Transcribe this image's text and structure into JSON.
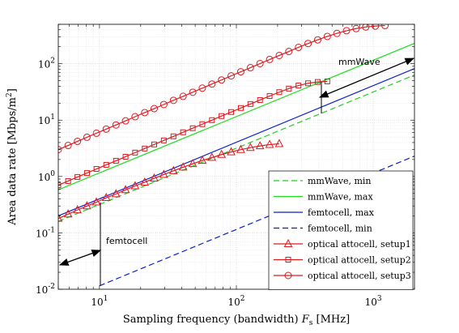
{
  "chart_data": {
    "type": "line",
    "xscale": "log",
    "yscale": "log",
    "xlim": [
      5,
      2000
    ],
    "ylim": [
      0.01,
      500
    ],
    "grid": true,
    "xlabel_main": "Sampling frequency (bandwidth) ",
    "xlabel_var": "F",
    "xlabel_sub": "s",
    "xlabel_unit": " [MHz]",
    "ylabel_main": "Area data rate [Mbps/m",
    "ylabel_sup": "2",
    "ylabel_end": "]",
    "xticks": [
      {
        "value": 10,
        "base": "10",
        "exp": "1"
      },
      {
        "value": 100,
        "base": "10",
        "exp": "2"
      },
      {
        "value": 1000,
        "base": "10",
        "exp": "3"
      }
    ],
    "yticks": [
      {
        "value": 0.01,
        "base": "10",
        "exp": "-2"
      },
      {
        "value": 0.1,
        "base": "10",
        "exp": "-1"
      },
      {
        "value": 1,
        "base": "10",
        "exp": "0"
      },
      {
        "value": 10,
        "base": "10",
        "exp": "1"
      },
      {
        "value": 100,
        "base": "10",
        "exp": "2"
      }
    ],
    "legend_position": "bottom-right",
    "series": [
      {
        "name": "mmWave, min",
        "color": "#22cc22",
        "dash": "dashed",
        "marker": "none",
        "x": [
          5,
          2000
        ],
        "y": [
          0.16,
          63
        ]
      },
      {
        "name": "mmWave, max",
        "color": "#22dd22",
        "dash": "solid",
        "marker": "none",
        "x": [
          5,
          2000
        ],
        "y": [
          0.58,
          230
        ]
      },
      {
        "name": "femtocell, max",
        "color": "#0a1ecc",
        "dash": "solid",
        "marker": "none",
        "x": [
          5,
          2000
        ],
        "y": [
          0.2,
          82
        ]
      },
      {
        "name": "femtocell, min",
        "color": "#0a1ecc",
        "dash": "dashed",
        "marker": "none",
        "x": [
          10,
          2000
        ],
        "y": [
          0.0115,
          2.3
        ]
      },
      {
        "name": "optical attocell, setup1",
        "color": "#e0191f",
        "dash": "solid",
        "marker": "triangle",
        "x": [
          5,
          5.9,
          6.9,
          8.1,
          9.5,
          11.2,
          13.2,
          15.5,
          18.2,
          21.4,
          25.1,
          29.5,
          34.7,
          40.8,
          48,
          56.4,
          66.3,
          77.9,
          91.6,
          107.7,
          126.6,
          148.8,
          174.9,
          205.6
        ],
        "y": [
          0.18,
          0.215,
          0.255,
          0.3,
          0.35,
          0.42,
          0.49,
          0.58,
          0.68,
          0.79,
          0.93,
          1.08,
          1.26,
          1.46,
          1.68,
          1.92,
          2.17,
          2.45,
          2.72,
          2.99,
          3.25,
          3.48,
          3.68,
          3.8
        ]
      },
      {
        "name": "optical attocell, setup2",
        "color": "#e0191f",
        "dash": "solid",
        "marker": "square",
        "x": [
          5,
          5.9,
          6.9,
          8.1,
          9.5,
          11.2,
          13.2,
          15.5,
          18.2,
          21.4,
          25.1,
          29.5,
          34.7,
          40.8,
          48,
          56.4,
          66.3,
          77.9,
          91.6,
          107.7,
          126.6,
          148.8,
          174.9,
          205.6,
          241.7,
          284.2,
          334,
          392.7,
          461.6
        ],
        "y": [
          0.7,
          0.83,
          0.98,
          1.15,
          1.36,
          1.61,
          1.9,
          2.24,
          2.65,
          3.13,
          3.7,
          4.36,
          5.15,
          6.08,
          7.18,
          8.47,
          9.99,
          11.8,
          13.9,
          16.4,
          19.3,
          22.7,
          26.7,
          31.3,
          36.2,
          41,
          45,
          47.5,
          48.5
        ]
      },
      {
        "name": "optical attocell, setup3",
        "color": "#e0191f",
        "dash": "solid",
        "marker": "circle",
        "x": [
          5,
          5.9,
          6.9,
          8.1,
          9.5,
          11.2,
          13.2,
          15.5,
          18.2,
          21.4,
          25.1,
          29.5,
          34.7,
          40.8,
          48,
          56.4,
          66.3,
          77.9,
          91.6,
          107.7,
          126.6,
          148.8,
          174.9,
          205.6,
          241.7,
          284.2,
          334,
          392.7,
          461.6,
          542.6,
          637.8,
          749.8,
          881.3,
          1036,
          1218
        ],
        "y": [
          3.0,
          3.55,
          4.2,
          4.96,
          5.86,
          6.93,
          8.2,
          9.69,
          11.5,
          13.6,
          16.0,
          18.9,
          22.4,
          26.4,
          31.2,
          36.9,
          43.6,
          51.5,
          60.9,
          72,
          85,
          100.5,
          118.8,
          140,
          165,
          195,
          228,
          265,
          305,
          345,
          385,
          420,
          448,
          465,
          475
        ]
      }
    ],
    "annotations": [
      {
        "text": "mmWave"
      },
      {
        "text": "femtocell"
      }
    ]
  }
}
